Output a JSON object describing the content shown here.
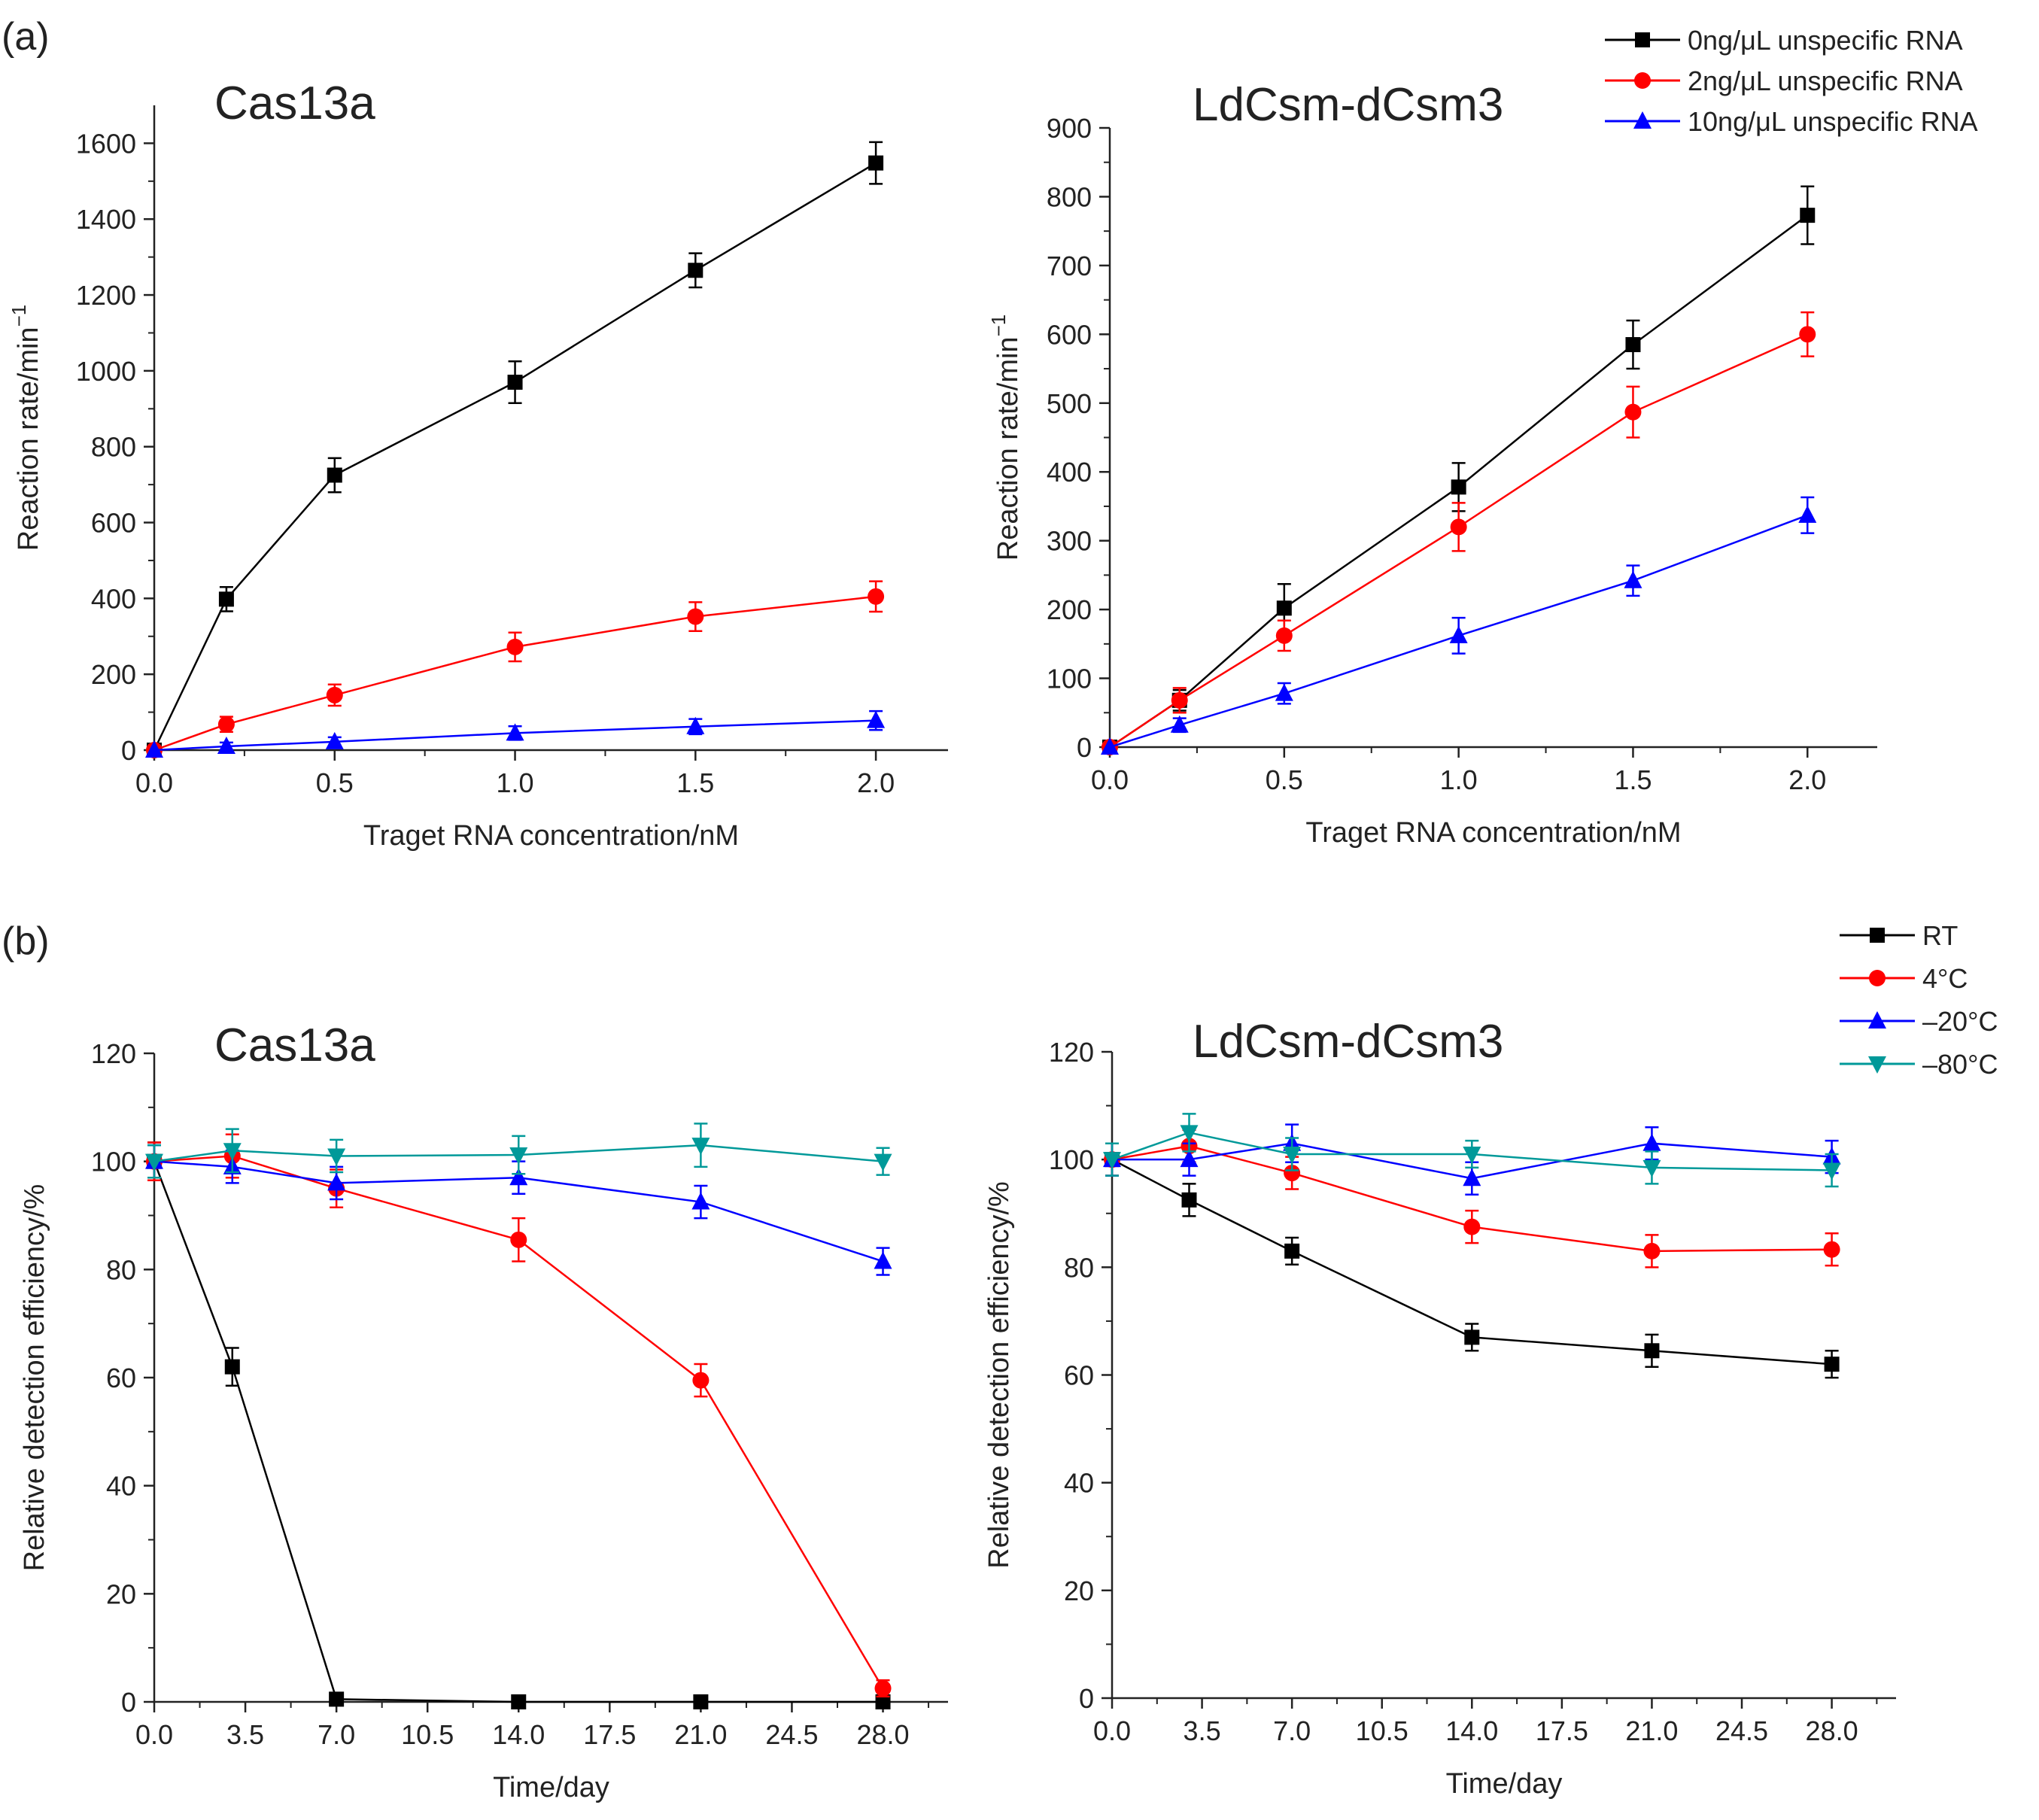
{
  "figure": {
    "panel_a_label": "(a)",
    "panel_b_label": "(b)"
  },
  "legends": {
    "a": [
      {
        "label": "0ng/μL unspecific RNA",
        "color": "#000000",
        "marker": "square"
      },
      {
        "label": "2ng/μL unspecific RNA",
        "color": "#ff0000",
        "marker": "circle"
      },
      {
        "label": "10ng/μL unspecific RNA",
        "color": "#0000ff",
        "marker": "triangle"
      }
    ],
    "b": [
      {
        "label": "RT",
        "color": "#000000",
        "marker": "square"
      },
      {
        "label": "4°C",
        "color": "#ff0000",
        "marker": "circle"
      },
      {
        "label": "–20°C",
        "color": "#0000ff",
        "marker": "triangle"
      },
      {
        "label": "–80°C",
        "color": "#009999",
        "marker": "triangle-down"
      }
    ]
  },
  "chart_data": [
    {
      "id": "a-cas13a",
      "type": "line",
      "title": "Cas13a",
      "xlabel": "Traget RNA concentration/nM",
      "ylabel": "Reaction rate/min",
      "ylabel_sup": "−1",
      "xlim": [
        0,
        2.2
      ],
      "ylim": [
        0,
        1700
      ],
      "xticks": [
        0,
        0.5,
        1,
        1.5,
        2
      ],
      "xtick_labels": [
        "0.0",
        "0.5",
        "1.0",
        "1.5",
        "2.0"
      ],
      "yticks": [
        0,
        200,
        400,
        600,
        800,
        1000,
        1200,
        1400,
        1600
      ],
      "ytick_labels": [
        "0",
        "200",
        "400",
        "600",
        "800",
        "1000",
        "1200",
        "1400",
        "1600"
      ],
      "x": [
        0,
        0.2,
        0.5,
        1.0,
        1.5,
        2.0
      ],
      "series": [
        {
          "name": "0ng/μL unspecific RNA",
          "color": "#000000",
          "marker": "square",
          "values": [
            0,
            398,
            725,
            970,
            1265,
            1548
          ],
          "errors": [
            0,
            32,
            45,
            55,
            45,
            55
          ]
        },
        {
          "name": "2ng/μL unspecific RNA",
          "color": "#ff0000",
          "marker": "circle",
          "values": [
            0,
            68,
            145,
            272,
            352,
            405
          ],
          "errors": [
            0,
            20,
            28,
            38,
            38,
            40
          ]
        },
        {
          "name": "10ng/μL unspecific RNA",
          "color": "#0000ff",
          "marker": "triangle",
          "values": [
            0,
            10,
            22,
            45,
            62,
            78
          ],
          "errors": [
            0,
            10,
            12,
            18,
            20,
            25
          ]
        }
      ]
    },
    {
      "id": "a-ldcsm",
      "type": "line",
      "title": "LdCsm-dCsm3",
      "xlabel": "Traget RNA concentration/nM",
      "ylabel": "Reaction rate/min",
      "ylabel_sup": "−1",
      "xlim": [
        0,
        2.2
      ],
      "ylim": [
        0,
        900
      ],
      "xticks": [
        0,
        0.5,
        1,
        1.5,
        2
      ],
      "xtick_labels": [
        "0.0",
        "0.5",
        "1.0",
        "1.5",
        "2.0"
      ],
      "yticks": [
        0,
        100,
        200,
        300,
        400,
        500,
        600,
        700,
        800,
        900
      ],
      "ytick_labels": [
        "0",
        "100",
        "200",
        "300",
        "400",
        "500",
        "600",
        "700",
        "800",
        "900"
      ],
      "x": [
        0,
        0.2,
        0.5,
        1.0,
        1.5,
        2.0
      ],
      "series": [
        {
          "name": "0ng/μL unspecific RNA",
          "color": "#000000",
          "marker": "square",
          "values": [
            0,
            68,
            202,
            378,
            585,
            773
          ],
          "errors": [
            0,
            15,
            35,
            35,
            35,
            42
          ]
        },
        {
          "name": "2ng/μL unspecific RNA",
          "color": "#ff0000",
          "marker": "circle",
          "values": [
            0,
            68,
            162,
            320,
            487,
            600
          ],
          "errors": [
            0,
            18,
            22,
            35,
            37,
            32
          ]
        },
        {
          "name": "10ng/μL unspecific RNA",
          "color": "#0000ff",
          "marker": "triangle",
          "values": [
            0,
            32,
            78,
            162,
            242,
            337
          ],
          "errors": [
            0,
            10,
            15,
            26,
            22,
            26
          ]
        }
      ]
    },
    {
      "id": "b-cas13a",
      "type": "line",
      "title": "Cas13a",
      "xlabel": "Time/day",
      "ylabel": "Relative detection efficiency/%",
      "ylabel_sup": "",
      "xlim": [
        0,
        30.5
      ],
      "ylim": [
        0,
        120
      ],
      "xticks": [
        0,
        3.5,
        7,
        10.5,
        14,
        17.5,
        21,
        24.5,
        28
      ],
      "xtick_labels": [
        "0.0",
        "3.5",
        "7.0",
        "10.5",
        "14.0",
        "17.5",
        "21.0",
        "24.5",
        "28.0"
      ],
      "yticks": [
        0,
        20,
        40,
        60,
        80,
        100,
        120
      ],
      "ytick_labels": [
        "0",
        "20",
        "40",
        "60",
        "80",
        "100",
        "120"
      ],
      "x": [
        0,
        3,
        7,
        14,
        21,
        28
      ],
      "series": [
        {
          "name": "RT",
          "color": "#000000",
          "marker": "square",
          "values": [
            100,
            62,
            0.5,
            0,
            0,
            0
          ],
          "errors": [
            3.5,
            3.5,
            0.5,
            0.3,
            0.3,
            0.3
          ]
        },
        {
          "name": "4°C",
          "color": "#ff0000",
          "marker": "circle",
          "values": [
            100,
            101,
            95,
            85.5,
            59.5,
            2.5
          ],
          "errors": [
            3.5,
            4,
            3.5,
            4,
            3,
            1.5
          ]
        },
        {
          "name": "–20°C",
          "color": "#0000ff",
          "marker": "triangle",
          "values": [
            100,
            99,
            96,
            97,
            92.5,
            81.5
          ],
          "errors": [
            3,
            3,
            3,
            3,
            3,
            2.5
          ]
        },
        {
          "name": "–80°C",
          "color": "#009999",
          "marker": "triangle-down",
          "values": [
            100,
            102,
            101,
            101.2,
            103,
            100
          ],
          "errors": [
            3,
            4,
            3,
            3.5,
            4,
            2.5
          ]
        }
      ]
    },
    {
      "id": "b-ldcsm",
      "type": "line",
      "title": "LdCsm-dCsm3",
      "xlabel": "Time/day",
      "ylabel": "Relative detection efficiency/%",
      "ylabel_sup": "",
      "xlim": [
        0,
        30.5
      ],
      "ylim": [
        0,
        120
      ],
      "xticks": [
        0,
        3.5,
        7,
        10.5,
        14,
        17.5,
        21,
        24.5,
        28
      ],
      "xtick_labels": [
        "0.0",
        "3.5",
        "7.0",
        "10.5",
        "14.0",
        "17.5",
        "21.0",
        "24.5",
        "28.0"
      ],
      "yticks": [
        0,
        20,
        40,
        60,
        80,
        100,
        120
      ],
      "ytick_labels": [
        "0",
        "20",
        "40",
        "60",
        "80",
        "100",
        "120"
      ],
      "x": [
        0,
        3,
        7,
        14,
        21,
        28
      ],
      "series": [
        {
          "name": "RT",
          "color": "#000000",
          "marker": "square",
          "values": [
            100,
            92.5,
            83,
            67,
            64.5,
            62
          ],
          "errors": [
            3,
            3,
            2.5,
            2.5,
            3,
            2.5
          ]
        },
        {
          "name": "4°C",
          "color": "#ff0000",
          "marker": "circle",
          "values": [
            100,
            102.5,
            97.5,
            87.5,
            83,
            83.3
          ],
          "errors": [
            3,
            3,
            3,
            3,
            3,
            3
          ]
        },
        {
          "name": "–20°C",
          "color": "#0000ff",
          "marker": "triangle",
          "values": [
            100,
            100,
            103,
            96.5,
            103,
            100.5
          ],
          "errors": [
            3,
            3,
            3.5,
            3,
            3,
            3
          ]
        },
        {
          "name": "–80°C",
          "color": "#009999",
          "marker": "triangle-down",
          "values": [
            100,
            105,
            101,
            101,
            98.5,
            98
          ],
          "errors": [
            3,
            3.5,
            3,
            2.5,
            3,
            3
          ]
        }
      ]
    }
  ]
}
